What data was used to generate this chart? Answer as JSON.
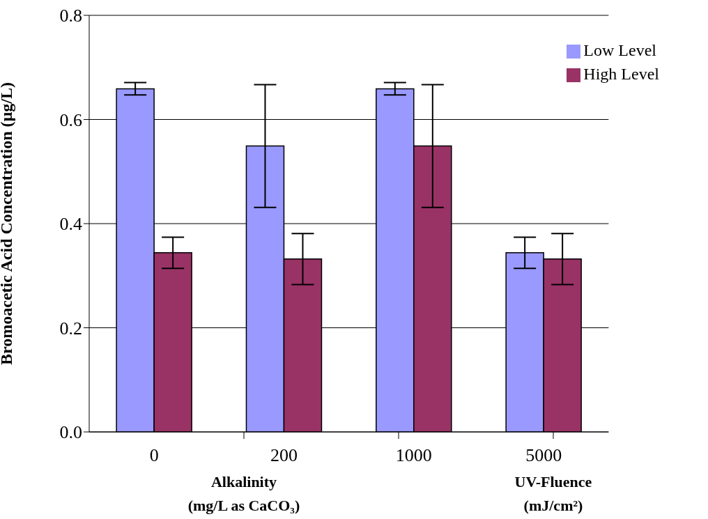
{
  "chart_data": {
    "type": "bar",
    "ylabel": "Bromoacetic Acid Concentration (µg/L)",
    "categories": [
      "0",
      "200",
      "1000",
      "5000"
    ],
    "series": [
      {
        "name": "Low Level",
        "color": "#9999ff",
        "values": [
          0.659,
          0.549,
          0.659,
          0.344
        ],
        "errors": [
          0.012,
          0.118,
          0.012,
          0.03
        ]
      },
      {
        "name": "High Level",
        "color": "#993366",
        "values": [
          0.344,
          0.332,
          0.549,
          0.332
        ],
        "errors": [
          0.03,
          0.049,
          0.118,
          0.049
        ]
      }
    ],
    "ylim": [
      0,
      0.8
    ],
    "yticks": [
      {
        "value": 0,
        "label": "0.0"
      },
      0.2,
      0.4,
      0.6,
      0.8
    ],
    "grid": "y",
    "legend": "top right",
    "annotations": [
      "Alkalinity\n(mg/L as CaCO₃)",
      "UV-Fluence\n(mJ/cm²)"
    ]
  }
}
